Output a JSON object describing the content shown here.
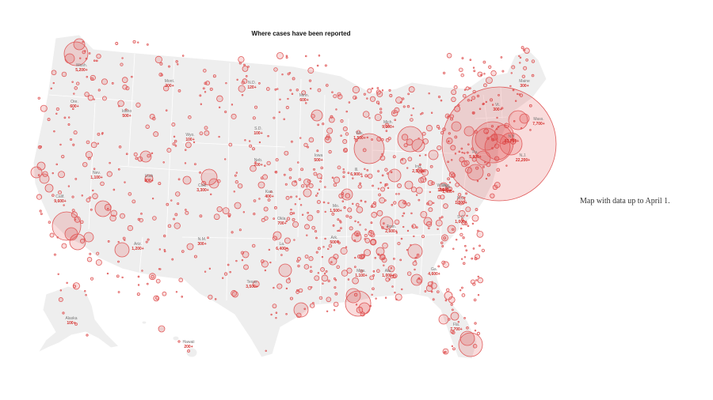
{
  "title": "Where cases have been reported",
  "caption": "Map with data up to April 1.",
  "colors": {
    "land": "#eeeeee",
    "bubble_fill": "rgba(220,60,60,0.18)",
    "bubble_stroke": "#e05a5a",
    "label_count": "#d6312e",
    "label_name": "#777777"
  },
  "state_labels": [
    {
      "id": "wash",
      "name": "Wash.",
      "count": "5,200+"
    },
    {
      "id": "ore",
      "name": "Ore.",
      "count": "600+"
    },
    {
      "id": "idaho",
      "name": "Idaho",
      "count": "500+"
    },
    {
      "id": "mont",
      "name": "Mont.",
      "count": "200+"
    },
    {
      "id": "wyo",
      "name": "Wyo.",
      "count": "100+"
    },
    {
      "id": "nd",
      "name": "N.D.",
      "count": "120+"
    },
    {
      "id": "sd",
      "name": "S.D.",
      "count": "100+"
    },
    {
      "id": "minn",
      "name": "Minn.",
      "count": "600+"
    },
    {
      "id": "nev",
      "name": "Nev.",
      "count": "1,100+"
    },
    {
      "id": "utah",
      "name": "Utah",
      "count": "800+"
    },
    {
      "id": "colo",
      "name": "Colo.",
      "count": "3,300+"
    },
    {
      "id": "neb",
      "name": "Neb.",
      "count": "200+"
    },
    {
      "id": "kan",
      "name": "Kan.",
      "count": "400+"
    },
    {
      "id": "calif",
      "name": "Calif.",
      "count": "9,600+"
    },
    {
      "id": "ariz",
      "name": "Ariz.",
      "count": "1,200+"
    },
    {
      "id": "nm",
      "name": "N.M.",
      "count": "300+"
    },
    {
      "id": "okla",
      "name": "Okla.",
      "count": "700+"
    },
    {
      "id": "texas",
      "name": "Texas",
      "count": "3,500+"
    },
    {
      "id": "wis",
      "name": "Wis.",
      "count": "1,500+"
    },
    {
      "id": "iowa",
      "name": "Iowa",
      "count": "500+"
    },
    {
      "id": "ill",
      "name": "Ill.",
      "count": "6,900+"
    },
    {
      "id": "mo",
      "name": "Mo.",
      "count": "1,500+"
    },
    {
      "id": "ark",
      "name": "Ark.",
      "count": "500+"
    },
    {
      "id": "la",
      "name": "La.",
      "count": "6,400+"
    },
    {
      "id": "mich",
      "name": "Mich.",
      "count": "9,300+"
    },
    {
      "id": "ind",
      "name": "Ind.",
      "count": "2,500+"
    },
    {
      "id": "ohio",
      "name": "Ohio",
      "count": "2,500+"
    },
    {
      "id": "tenn",
      "name": "Tenn.",
      "count": "2,600+"
    },
    {
      "id": "miss",
      "name": "Miss.",
      "count": "1,100+"
    },
    {
      "id": "ala",
      "name": "Ala.",
      "count": "1,000+"
    },
    {
      "id": "ga",
      "name": "Ga.",
      "count": "4,600+"
    },
    {
      "id": "fla",
      "name": "Fla.",
      "count": "7,700+"
    },
    {
      "id": "sc",
      "name": "S.C.",
      "count": "1,000+"
    },
    {
      "id": "nc",
      "name": "N.C.",
      "count": "1,500+"
    },
    {
      "id": "va",
      "name": "Va.",
      "count": "1,400+"
    },
    {
      "id": "wva",
      "name": "W.Va.",
      "count": "100+"
    },
    {
      "id": "pa",
      "name": "Pa.",
      "count": "5,800+"
    },
    {
      "id": "ny",
      "name": "N.Y.",
      "count": "83,700+"
    },
    {
      "id": "nj",
      "name": "N.J.",
      "count": "22,200+"
    },
    {
      "id": "vt",
      "name": "Vt.",
      "count": "300+"
    },
    {
      "id": "maine",
      "name": "Maine",
      "count": "300+"
    },
    {
      "id": "mass",
      "name": "Mass.",
      "count": "7,700+"
    },
    {
      "id": "alaska",
      "name": "Alaska",
      "count": "100+"
    },
    {
      "id": "hawaii",
      "name": "Hawaii",
      "count": "200+"
    }
  ]
}
